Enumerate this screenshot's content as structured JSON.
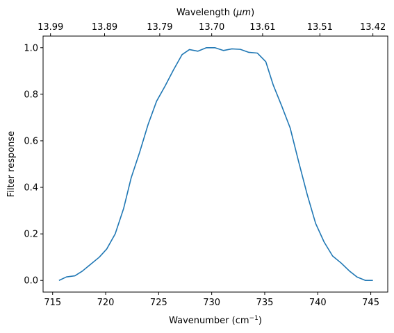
{
  "chart_data": {
    "type": "line",
    "title": "",
    "xlabel": "Wavenumber (cm",
    "xlabel_sup": "−1",
    "xlabel_close": ")",
    "ylabel": "Filter response",
    "top_xlabel": "Wavelength (",
    "top_xlabel_unit": "μm",
    "top_xlabel_close": ")",
    "xlim": [
      714.1,
      746.6
    ],
    "ylim": [
      -0.05,
      1.05
    ],
    "grid": false,
    "x_ticks": [
      715,
      720,
      725,
      730,
      735,
      740,
      745
    ],
    "x_tick_labels": [
      "715",
      "720",
      "725",
      "730",
      "735",
      "740",
      "745"
    ],
    "y_ticks": [
      0.0,
      0.2,
      0.4,
      0.6,
      0.8,
      1.0
    ],
    "y_tick_labels": [
      "0.0",
      "0.2",
      "0.4",
      "0.6",
      "0.8",
      "1.0"
    ],
    "top_ticks": [
      {
        "label": "13.99",
        "x": 714.8
      },
      {
        "label": "13.89",
        "x": 719.9
      },
      {
        "label": "13.79",
        "x": 725.1
      },
      {
        "label": "13.70",
        "x": 730.0
      },
      {
        "label": "13.61",
        "x": 734.8
      },
      {
        "label": "13.51",
        "x": 740.2
      },
      {
        "label": "13.42",
        "x": 745.2
      }
    ],
    "series": [
      {
        "color": "#1f77b4",
        "x": [
          715.6,
          716.3,
          717.1,
          717.8,
          718.6,
          719.4,
          720.1,
          720.9,
          721.7,
          722.4,
          723.2,
          724.0,
          724.8,
          725.6,
          726.4,
          727.2,
          727.9,
          728.7,
          729.5,
          730.3,
          731.1,
          731.9,
          732.7,
          733.5,
          734.3,
          735.1,
          735.8,
          736.6,
          737.4,
          738.2,
          739.0,
          739.8,
          740.6,
          741.4,
          742.2,
          743.0,
          743.7,
          744.5,
          745.2
        ],
        "y": [
          0.0,
          0.015,
          0.02,
          0.04,
          0.07,
          0.1,
          0.135,
          0.2,
          0.31,
          0.44,
          0.55,
          0.67,
          0.77,
          0.835,
          0.905,
          0.97,
          0.992,
          0.985,
          1.0,
          1.0,
          0.988,
          0.995,
          0.993,
          0.98,
          0.977,
          0.94,
          0.84,
          0.75,
          0.655,
          0.51,
          0.37,
          0.245,
          0.165,
          0.105,
          0.075,
          0.04,
          0.015,
          0.0,
          0.0
        ]
      }
    ]
  }
}
